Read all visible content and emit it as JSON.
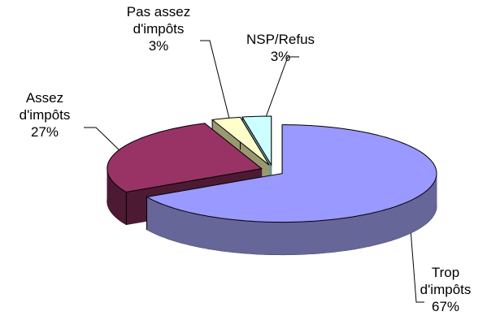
{
  "chart_data": {
    "type": "pie3d",
    "categories": [
      "Trop d'impôts",
      "Assez d'impôts",
      "Pas assez d'impôts",
      "NSP/Refus"
    ],
    "values": [
      67,
      27,
      3,
      3
    ],
    "value_labels": [
      "67%",
      "27%",
      "3%",
      "3%"
    ],
    "colors": [
      "#9999ff",
      "#993366",
      "#ffffcc",
      "#ccffff"
    ],
    "side_colors": [
      "#666699",
      "#4d1a33",
      "#999970",
      "#669999"
    ]
  }
}
